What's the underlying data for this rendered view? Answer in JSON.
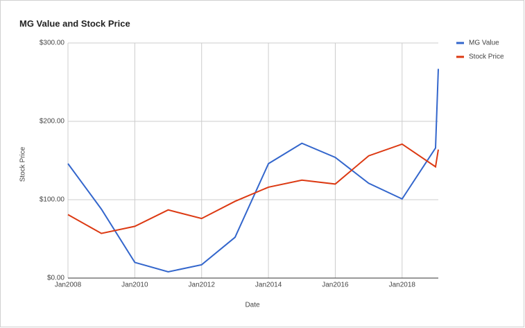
{
  "chart_data": {
    "type": "line",
    "title": "MG Value and Stock Price",
    "x_label": "Date",
    "y_label": "Stock Price",
    "x": [
      "2008-01",
      "2009-01",
      "2010-01",
      "2011-01",
      "2012-01",
      "2013-01",
      "2014-01",
      "2015-01",
      "2016-01",
      "2017-01",
      "2018-01",
      "2019-01",
      "2019-02"
    ],
    "series": [
      {
        "name": "MG Value",
        "color": "#3366cc",
        "values": [
          146,
          88,
          20,
          8,
          17,
          52,
          146,
          172,
          154,
          121,
          101,
          166,
          267
        ]
      },
      {
        "name": "Stock Price",
        "color": "#dc3912",
        "values": [
          81,
          57,
          66,
          87,
          76,
          98,
          116,
          125,
          120,
          156,
          171,
          142,
          164
        ]
      }
    ],
    "xlim": [
      "2008-01",
      "2019-02"
    ],
    "xticks": [
      {
        "value": "2008-01",
        "label": "Jan2008"
      },
      {
        "value": "2010-01",
        "label": "Jan2010"
      },
      {
        "value": "2012-01",
        "label": "Jan2012"
      },
      {
        "value": "2014-01",
        "label": "Jan2014"
      },
      {
        "value": "2016-01",
        "label": "Jan2016"
      },
      {
        "value": "2018-01",
        "label": "Jan2018"
      }
    ],
    "ylim": [
      0,
      300
    ],
    "yticks": [
      {
        "value": 0,
        "label": "$0.00"
      },
      {
        "value": 100,
        "label": "$100.00"
      },
      {
        "value": 200,
        "label": "$200.00"
      },
      {
        "value": 300,
        "label": "$300.00"
      }
    ],
    "grid": true,
    "legend": "right"
  }
}
